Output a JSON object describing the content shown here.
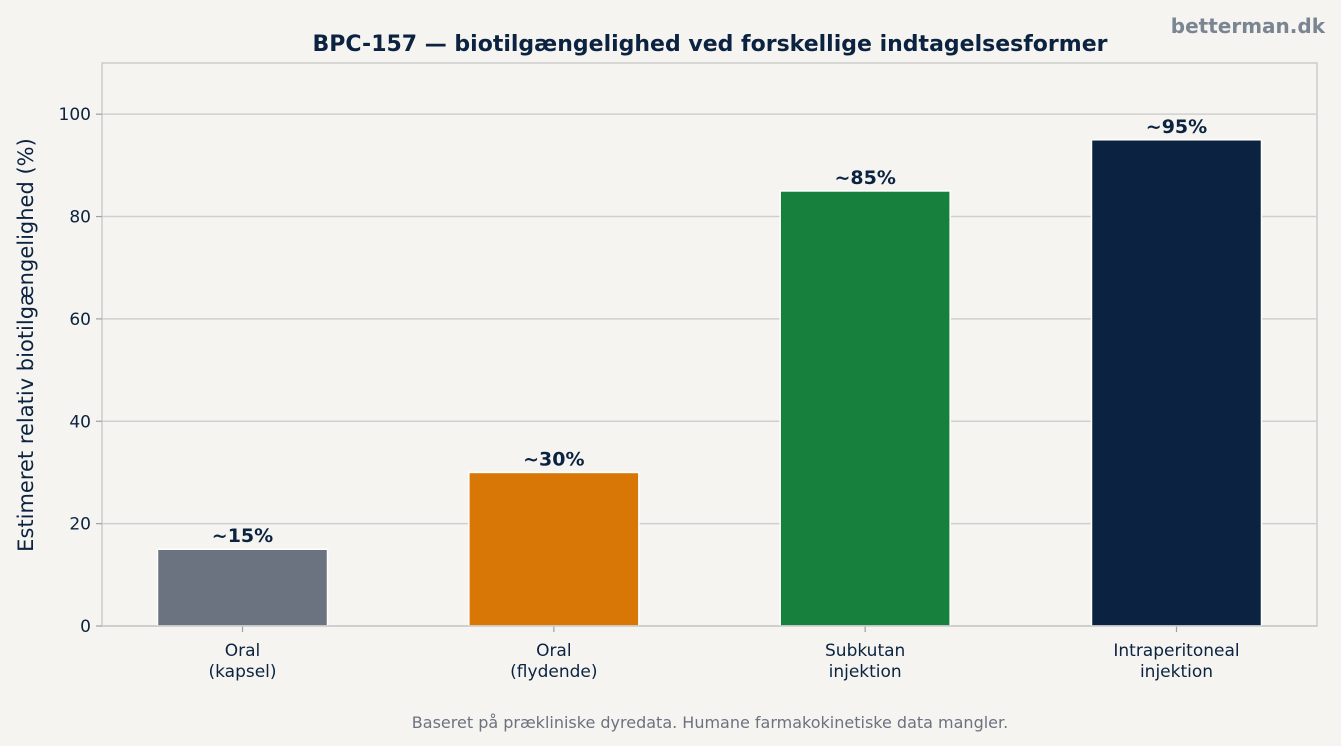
{
  "watermark": "betterman.dk",
  "footnote": "Baseret på prækliniske dyredata. Humane farmakokinetiske data mangler.",
  "chart_data": {
    "type": "bar",
    "title": "BPC-157 — biotilgængelighed ved forskellige indtagelsesformer",
    "xlabel": "",
    "ylabel": "Estimeret relativ biotilgængelighed (%)",
    "ylim": [
      0,
      110
    ],
    "yticks": [
      0,
      20,
      40,
      60,
      80,
      100
    ],
    "grid": true,
    "categories": [
      [
        "Oral",
        "(kapsel)"
      ],
      [
        "Oral",
        "(flydende)"
      ],
      [
        "Subkutan",
        "injektion"
      ],
      [
        "Intraperitoneal",
        "injektion"
      ]
    ],
    "values": [
      15,
      30,
      85,
      95
    ],
    "value_labels": [
      "~15%",
      "~30%",
      "~85%",
      "~95%"
    ],
    "colors": [
      "#6b7280",
      "#d97706",
      "#16803c",
      "#0b2340"
    ]
  }
}
